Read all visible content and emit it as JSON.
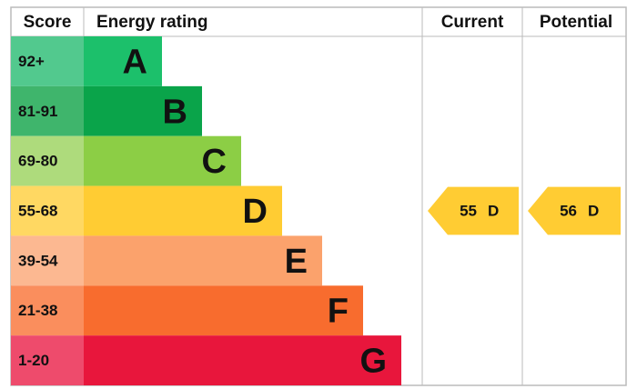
{
  "header": {
    "score": "Score",
    "rating": "Energy rating",
    "current": "Current",
    "potential": "Potential"
  },
  "bands": [
    {
      "score": "92+",
      "letter": "A",
      "color": "#1cc06b",
      "light": "#52c98e"
    },
    {
      "score": "81-91",
      "letter": "B",
      "color": "#0aa44a",
      "light": "#3fb56c"
    },
    {
      "score": "69-80",
      "letter": "C",
      "color": "#8cce45",
      "light": "#aedb7c"
    },
    {
      "score": "55-68",
      "letter": "D",
      "color": "#ffcc33",
      "light": "#ffd862"
    },
    {
      "score": "39-54",
      "letter": "E",
      "color": "#fba26c",
      "light": "#fcb891"
    },
    {
      "score": "21-38",
      "letter": "F",
      "color": "#f86c2e",
      "light": "#fa8e5d"
    },
    {
      "score": "1-20",
      "letter": "G",
      "color": "#e8163c",
      "light": "#ee4b6c"
    }
  ],
  "current": {
    "value": 55,
    "letter": "D"
  },
  "potential": {
    "value": 56,
    "letter": "D"
  }
}
